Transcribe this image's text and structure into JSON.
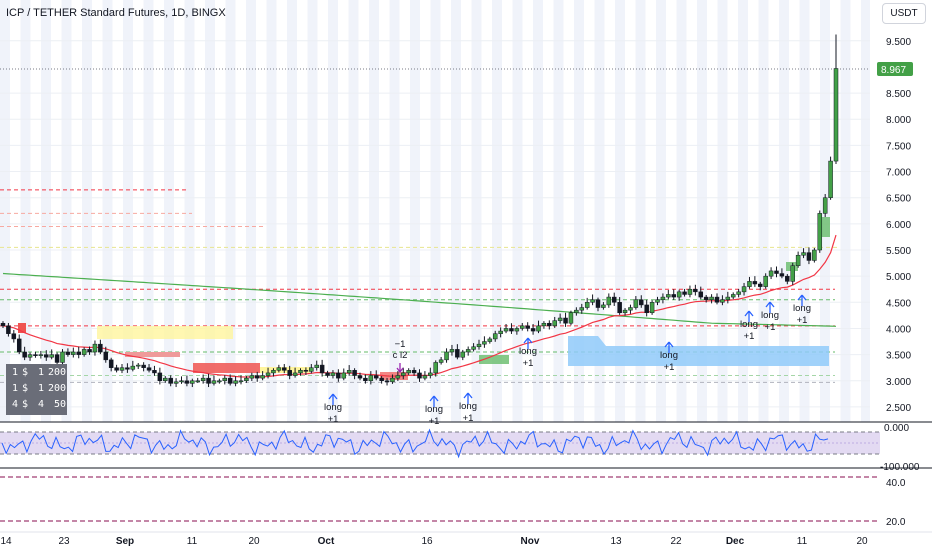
{
  "header": {
    "title": "ICP / TETHER Standard Futures, 1D, BINGX",
    "currency_button": "USDT"
  },
  "colors": {
    "up": "#26a69a",
    "up_body": "#43a047",
    "down": "#131722",
    "ema_fast": "#f23645",
    "ema_slow": "#4caf50",
    "rsi_line": "#2962ff",
    "rsi_band": "#7e57c2",
    "price_tag": "#43a047"
  },
  "legend_table": [
    [
      "1",
      "$",
      "1",
      "200"
    ],
    [
      "1",
      "$",
      "1",
      "200"
    ],
    [
      "4",
      "$",
      "4",
      "50"
    ]
  ],
  "chart_data": [
    {
      "type": "candlestick",
      "symbol": "ICP / TETHER Standard Futures",
      "interval": "1D",
      "exchange": "BINGX",
      "x_ticks": [
        "14",
        "23",
        "Sep",
        "11",
        "20",
        "Oct",
        "16",
        "Nov",
        "13",
        "22",
        "Dec",
        "11",
        "20"
      ],
      "y_ticks": [
        "9.500",
        "8.500",
        "8.000",
        "7.500",
        "7.000",
        "6.500",
        "6.000",
        "5.500",
        "5.000",
        "4.500",
        "4.000",
        "3.500",
        "3.000",
        "2.500"
      ],
      "ylim": [
        2.25,
        10.05
      ],
      "last_price": "8.967",
      "close": [
        4.05,
        3.9,
        3.8,
        3.55,
        3.45,
        3.5,
        3.48,
        3.5,
        3.45,
        3.5,
        3.35,
        3.55,
        3.5,
        3.55,
        3.5,
        3.6,
        3.55,
        3.7,
        3.55,
        3.4,
        3.25,
        3.2,
        3.25,
        3.22,
        3.28,
        3.3,
        3.25,
        3.2,
        3.15,
        3.0,
        3.05,
        2.95,
        2.98,
        3.0,
        2.95,
        3.0,
        3.0,
        3.05,
        2.95,
        3.0,
        3.0,
        3.05,
        2.95,
        3.0,
        3.0,
        3.05,
        3.1,
        3.05,
        3.1,
        3.15,
        3.2,
        3.25,
        3.2,
        3.1,
        3.15,
        3.2,
        3.18,
        3.25,
        3.3,
        3.15,
        3.1,
        3.15,
        3.05,
        3.15,
        3.2,
        3.1,
        3.05,
        3.0,
        3.1,
        3.05,
        3.0,
        2.98,
        3.05,
        3.1,
        3.15,
        3.2,
        3.15,
        3.05,
        3.1,
        3.15,
        3.35,
        3.4,
        3.55,
        3.6,
        3.45,
        3.55,
        3.6,
        3.65,
        3.7,
        3.75,
        3.8,
        3.9,
        3.95,
        4.0,
        3.95,
        4.0,
        4.05,
        4.0,
        3.95,
        4.05,
        4.1,
        4.05,
        4.15,
        4.2,
        4.1,
        4.3,
        4.35,
        4.4,
        4.5,
        4.55,
        4.4,
        4.45,
        4.6,
        4.5,
        4.3,
        4.35,
        4.4,
        4.55,
        4.45,
        4.3,
        4.5,
        4.55,
        4.6,
        4.65,
        4.6,
        4.7,
        4.65,
        4.75,
        4.7,
        4.6,
        4.55,
        4.6,
        4.5,
        4.55,
        4.6,
        4.65,
        4.7,
        4.8,
        4.9,
        4.85,
        4.8,
        5.0,
        5.1,
        5.05,
        5.0,
        4.9,
        5.2,
        5.4,
        5.45,
        5.3,
        5.5,
        6.2,
        6.5,
        7.2,
        8.97
      ],
      "rsi": {
        "ylim": [
          -100,
          10
        ],
        "levels": [
          0.0,
          -100.0
        ],
        "y_ticks": [
          "0.000",
          "-100.000"
        ]
      },
      "lower_pane": {
        "y_ticks": [
          "40.0",
          "20.0"
        ]
      },
      "signals": [
        {
          "label": "long",
          "sub": "+1"
        },
        {
          "label": "long",
          "sub": "+1"
        },
        {
          "label": "long",
          "sub": "+1"
        },
        {
          "label": "long",
          "sub": "+1"
        },
        {
          "label": "long",
          "sub": "+1"
        },
        {
          "label": "long",
          "sub": "+1"
        },
        {
          "label": "long",
          "sub": "+1"
        },
        {
          "label": "long",
          "sub": "+1"
        }
      ],
      "exit_signal": {
        "label": "−1",
        "sub": "c l2"
      }
    }
  ]
}
